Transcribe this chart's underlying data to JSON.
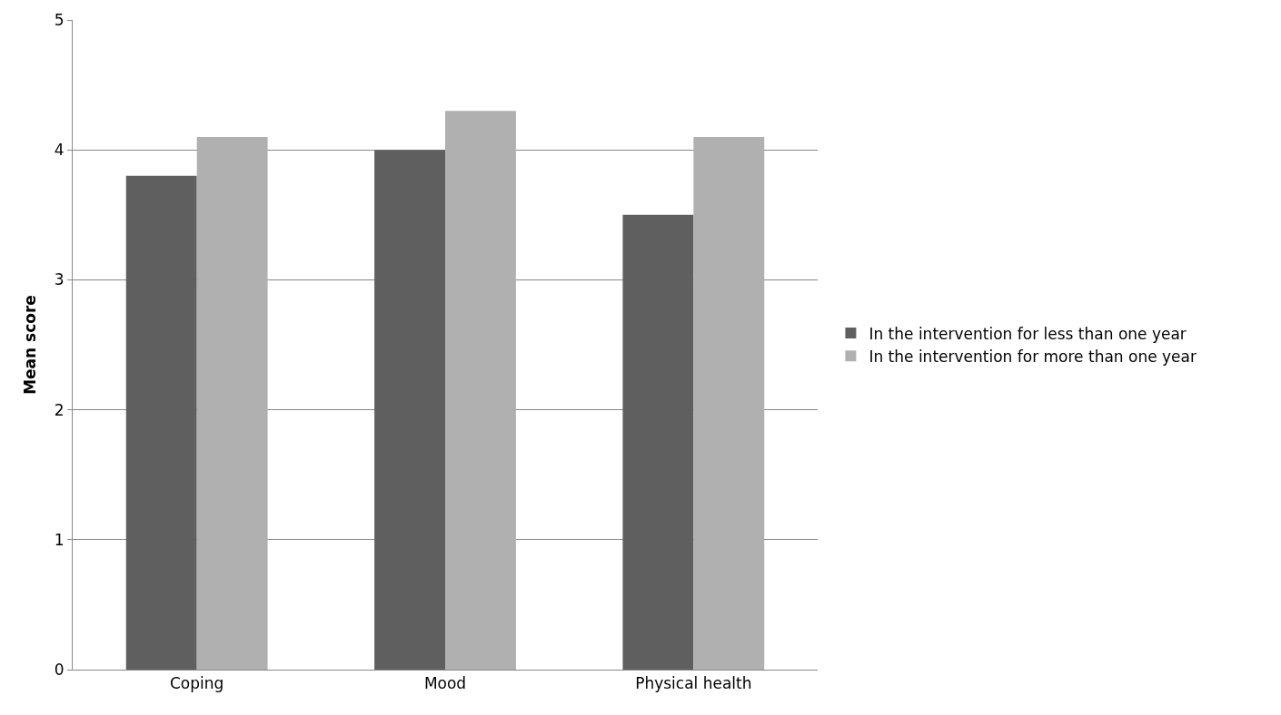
{
  "chart_data": {
    "type": "bar",
    "ylabel": "Mean score",
    "categories": [
      "Coping",
      "Mood",
      "Physical health"
    ],
    "series": [
      {
        "name": "In the intervention for less than one year",
        "color": "#5f5f5f",
        "values": [
          3.8,
          4.0,
          3.5
        ]
      },
      {
        "name": "In the intervention for more than one year",
        "color": "#b0b0b0",
        "values": [
          4.1,
          4.3,
          4.1
        ]
      }
    ],
    "ylim": [
      0,
      5
    ],
    "yticks": [
      0,
      1,
      2,
      3,
      4,
      5
    ],
    "grid": "y",
    "legend": "right"
  }
}
